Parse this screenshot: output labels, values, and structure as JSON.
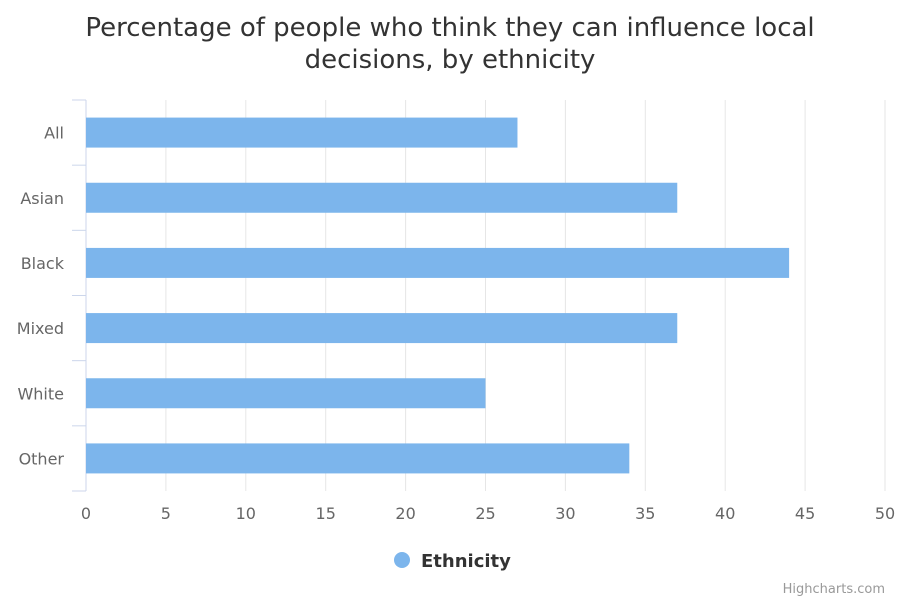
{
  "chart_data": {
    "type": "bar",
    "orientation": "horizontal",
    "title": "Percentage of people who think they can influence local decisions, by ethnicity",
    "title_lines": [
      "Percentage of people who think they can influence local",
      "decisions, by ethnicity"
    ],
    "categories": [
      "All",
      "Asian",
      "Black",
      "Mixed",
      "White",
      "Other"
    ],
    "series": [
      {
        "name": "Ethnicity",
        "values": [
          27,
          37,
          44,
          37,
          25,
          34
        ],
        "color": "#7cb5ec"
      }
    ],
    "xlim": [
      0,
      50
    ],
    "x_ticks": [
      0,
      5,
      10,
      15,
      20,
      25,
      30,
      35,
      40,
      45,
      50
    ],
    "grid": true,
    "legend_position": "bottom-center",
    "credits": "Highcharts.com"
  }
}
